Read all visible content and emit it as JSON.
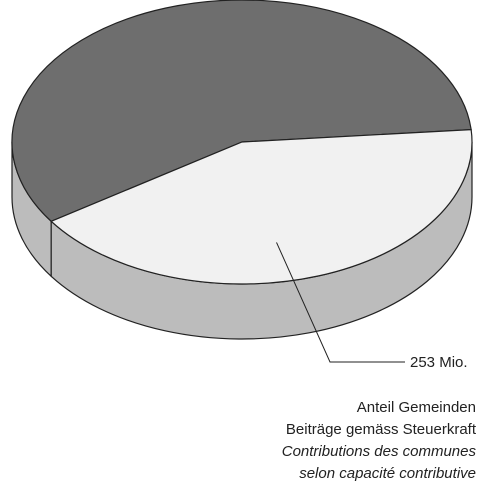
{
  "chart_data": {
    "type": "pie3d",
    "values": [
      350,
      253
    ],
    "value_labels": [
      null,
      "253 Mio."
    ],
    "colors": [
      "#6e6e6e",
      "#f1f1f1"
    ],
    "side_color": "#bcbcbc",
    "caption": [
      "Anteil Gemeinden",
      "Beiträge gemäss Steuerkraft",
      "Contributions des communes",
      "selon capacité contributive"
    ]
  }
}
